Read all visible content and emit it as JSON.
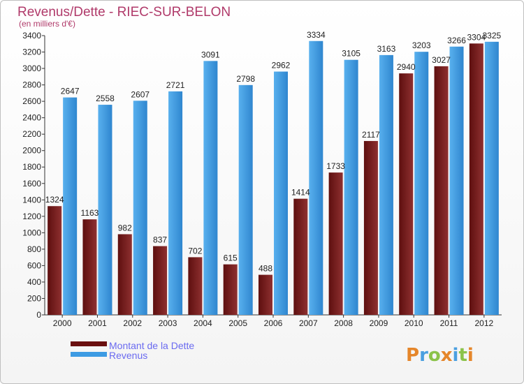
{
  "chart_data": {
    "type": "bar",
    "title": "Revenus/Dette - RIEC-SUR-BELON",
    "subtitle": "(en milliers d'€)",
    "categories": [
      "2000",
      "2001",
      "2002",
      "2003",
      "2004",
      "2005",
      "2006",
      "2007",
      "2008",
      "2009",
      "2010",
      "2011",
      "2012"
    ],
    "series": [
      {
        "name": "Montant de la Dette",
        "color": "#7a1f1f",
        "values": [
          1324,
          1163,
          982,
          837,
          702,
          615,
          488,
          1414,
          1733,
          2117,
          2940,
          3027,
          3304
        ],
        "labels": [
          "1324",
          "1163",
          "982",
          "837",
          "702",
          "615",
          "488",
          "1414",
          "1733",
          "2117",
          "2940",
          "3027",
          "3304"
        ]
      },
      {
        "name": "Revenus",
        "color": "#4aa3e6",
        "values": [
          2647,
          2558,
          2607,
          2721,
          3091,
          2798,
          2962,
          3334,
          3105,
          3163,
          3203,
          3266,
          3325
        ],
        "labels": [
          "2647",
          "2558",
          "2607",
          "2721",
          "3091",
          "2798",
          "2962",
          "3334",
          "3105",
          "3163",
          "3203",
          "3266",
          "3325"
        ]
      }
    ],
    "ylim": [
      0,
      3400
    ],
    "yticks": [
      0,
      200,
      400,
      600,
      800,
      1000,
      1200,
      1400,
      1600,
      1800,
      2000,
      2200,
      2400,
      2600,
      2800,
      3000,
      3200,
      3400
    ],
    "grid": false,
    "legend_position": "bottom-left"
  },
  "logo": {
    "text": "Proxiti"
  }
}
